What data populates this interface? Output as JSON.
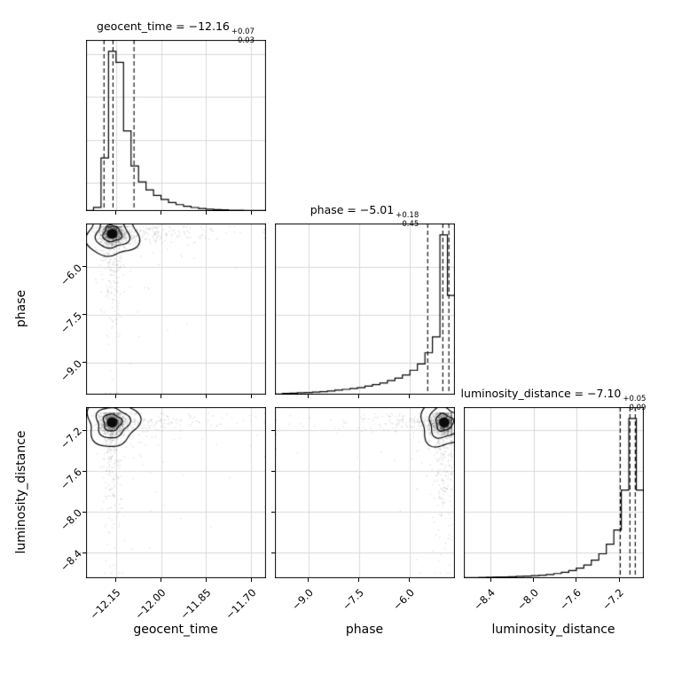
{
  "figure": {
    "background": "#ffffff",
    "frame_color": "#000000",
    "grid_color": "#d9d9d9",
    "scatter_color": "rgba(0,0,0,0.12)",
    "contour_color": "#000000",
    "quantile_line_style": "dashed"
  },
  "chart_data": {
    "type": "corner",
    "description": "Corner (triangle) posterior plot with 1D histograms on the diagonal and 2D scatter+contour panels below",
    "n_points": 1700,
    "parameters": [
      {
        "label": "geocent_time",
        "title": {
          "text": "geocent_time = −12.16",
          "sup": "+0.07",
          "sub": "−0.03"
        },
        "range": [
          -12.25,
          -11.65
        ],
        "ticks": [
          {
            "value": -12.15,
            "label": "−12.15"
          },
          {
            "value": -12.0,
            "label": "−12.00"
          },
          {
            "value": -11.85,
            "label": "−11.85"
          },
          {
            "value": -11.7,
            "label": "−11.70"
          }
        ],
        "quantiles": [
          -12.19,
          -12.16,
          -12.09
        ],
        "hist": [
          0,
          0.02,
          0.33,
          1.0,
          0.93,
          0.5,
          0.28,
          0.18,
          0.13,
          0.095,
          0.07,
          0.05,
          0.037,
          0.027,
          0.019,
          0.013,
          0.009,
          0.006,
          0.004,
          0.002,
          0.001,
          0,
          0,
          0
        ],
        "sample": {
          "core": {
            "mean": -12.163,
            "sigma": 0.02
          },
          "tail": {
            "frac": 0.2,
            "start": -12.18,
            "scale": 0.13,
            "dir": 1
          },
          "clip": [
            -12.245,
            -11.655
          ]
        }
      },
      {
        "label": "phase",
        "title": {
          "text": "phase = −5.01",
          "sup": "+0.18",
          "sub": "−0.45"
        },
        "range": [
          -10.0,
          -4.65
        ],
        "ticks": [
          {
            "value": -9.0,
            "label": "−9.0"
          },
          {
            "value": -7.5,
            "label": "−7.5"
          },
          {
            "value": -6.0,
            "label": "−6.0"
          }
        ],
        "quantiles": [
          -5.46,
          -5.01,
          -4.83
        ],
        "hist": [
          0,
          0.004,
          0.006,
          0.008,
          0.01,
          0.013,
          0.016,
          0.02,
          0.025,
          0.03,
          0.035,
          0.04,
          0.05,
          0.06,
          0.07,
          0.085,
          0.1,
          0.12,
          0.15,
          0.19,
          0.26,
          0.36,
          1.0,
          0.62
        ],
        "sample": {
          "core": {
            "mean": -4.97,
            "sigma": 0.17
          },
          "tail": {
            "frac": 0.18,
            "start": -4.85,
            "scale": 1.1,
            "dir": -1
          },
          "clip": [
            -9.95,
            -4.75
          ]
        }
      },
      {
        "label": "luminosity_distance",
        "title": {
          "text": "luminosity_distance = −7.10",
          "sup": "+0.05",
          "sub": "−0.09"
        },
        "range": [
          -8.65,
          -6.97
        ],
        "ticks": [
          {
            "value": -8.4,
            "label": "−8.4"
          },
          {
            "value": -8.0,
            "label": "−8.0"
          },
          {
            "value": -7.6,
            "label": "−7.6"
          },
          {
            "value": -7.2,
            "label": "−7.2"
          }
        ],
        "quantiles": [
          -7.19,
          -7.1,
          -7.05
        ],
        "hist": [
          0,
          0,
          0.002,
          0.003,
          0.004,
          0.005,
          0.006,
          0.008,
          0.01,
          0.013,
          0.016,
          0.02,
          0.026,
          0.034,
          0.045,
          0.06,
          0.08,
          0.11,
          0.15,
          0.21,
          0.3,
          0.55,
          1.0,
          0.55
        ],
        "sample": {
          "core": {
            "mean": -7.12,
            "sigma": 0.055
          },
          "tail": {
            "frac": 0.18,
            "start": -7.1,
            "scale": 0.35,
            "dir": -1
          },
          "clip": [
            -8.6,
            -7.03
          ]
        }
      }
    ],
    "scatter_panels": [
      {
        "x": 0,
        "y": 1
      },
      {
        "x": 0,
        "y": 2
      },
      {
        "x": 1,
        "y": 2
      }
    ]
  }
}
